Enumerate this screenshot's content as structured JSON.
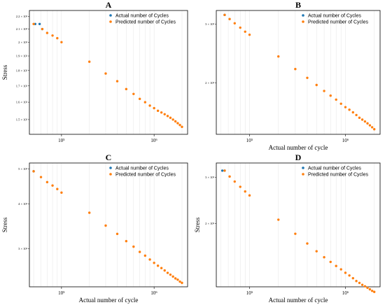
{
  "colors": {
    "actual": "#1f77b4",
    "predicted": "#ff7f0e",
    "frame": "#000000",
    "grid": "#dddddd"
  },
  "chart_data": [
    {
      "panel": "A",
      "type": "scatter",
      "title": "A",
      "xlabel": "",
      "ylabel": "Stress",
      "xscale": "log",
      "yscale": "log",
      "xlim": [
        45000,
        2300000
      ],
      "ylim": [
        142,
        225
      ],
      "xticks": [
        {
          "value": 100000,
          "label": "10⁵"
        },
        {
          "value": 1000000,
          "label": "10⁶"
        }
      ],
      "yticks": [
        {
          "value": 150,
          "label": "1.5 × 10²"
        },
        {
          "value": 160,
          "label": "1.6 × 10²"
        },
        {
          "value": 170,
          "label": "1.7 × 10²"
        },
        {
          "value": 180,
          "label": "1.8 × 10²"
        },
        {
          "value": 190,
          "label": "1.9 × 10²"
        },
        {
          "value": 200,
          "label": "2 × 10²"
        },
        {
          "value": 210,
          "label": "2.1 × 10²"
        },
        {
          "value": 220,
          "label": "2.2 × 10²"
        }
      ],
      "legend": "top-right",
      "series": [
        {
          "name": "Actual number of Cycles",
          "color": "#1f77b4",
          "x": [
            52000,
            58000,
            62000
          ],
          "y": [
            214,
            214,
            210
          ]
        },
        {
          "name": "Predicted number of Cycles",
          "color": "#ff7f0e",
          "x": [
            50000,
            62000,
            70000,
            80000,
            90000,
            100000,
            200000,
            300000,
            400000,
            500000,
            600000,
            700000,
            800000,
            900000,
            1000000,
            1100000,
            1200000,
            1300000,
            1400000,
            1500000,
            1600000,
            1700000,
            1800000,
            1900000,
            2000000
          ],
          "y": [
            214,
            210,
            207,
            205,
            203,
            200,
            186,
            178,
            173,
            168,
            165,
            162,
            160,
            158,
            156.5,
            155,
            154,
            153,
            152,
            151,
            150,
            149,
            148,
            147,
            146
          ]
        }
      ]
    },
    {
      "panel": "B",
      "type": "scatter",
      "title": "B",
      "xlabel": "Actual number of cycle",
      "ylabel": "",
      "xscale": "log",
      "yscale": "log",
      "xlim": [
        45000,
        2300000
      ],
      "ylim": [
        140,
        330
      ],
      "xticks": [
        {
          "value": 100000,
          "label": "10⁵"
        },
        {
          "value": 1000000,
          "label": "10⁶"
        }
      ],
      "yticks": [
        {
          "value": 200,
          "label": "2 × 10²"
        },
        {
          "value": 300,
          "label": "3 × 10²"
        }
      ],
      "legend": "top-right",
      "series": [
        {
          "name": "Actual number of Cycles",
          "color": "#1f77b4",
          "x": [
            55000
          ],
          "y": [
            320
          ]
        },
        {
          "name": "Predicted number of Cycles",
          "color": "#ff7f0e",
          "x": [
            55000,
            62000,
            70000,
            80000,
            90000,
            100000,
            200000,
            300000,
            400000,
            500000,
            600000,
            700000,
            800000,
            900000,
            1000000,
            1100000,
            1200000,
            1300000,
            1400000,
            1500000,
            1600000,
            1700000,
            1800000,
            1900000,
            2000000
          ],
          "y": [
            320,
            311,
            302,
            293,
            285,
            279,
            240,
            220,
            207,
            197,
            189,
            183,
            178,
            173,
            169,
            166,
            163,
            160,
            157,
            155,
            153,
            151,
            149,
            147,
            145
          ]
        }
      ]
    },
    {
      "panel": "C",
      "type": "scatter",
      "title": "C",
      "xlabel": "Actual number of cycle",
      "ylabel": "Stress",
      "xscale": "log",
      "yscale": "log",
      "xlim": [
        45000,
        2300000
      ],
      "ylim": [
        235,
        520
      ],
      "xticks": [
        {
          "value": 100000,
          "label": "10⁵"
        },
        {
          "value": 1000000,
          "label": "10⁶"
        }
      ],
      "yticks": [
        {
          "value": 300,
          "label": "3 × 10²"
        },
        {
          "value": 400,
          "label": "4 × 10²"
        },
        {
          "value": 500,
          "label": "5 × 10²"
        }
      ],
      "legend": "top-right",
      "series": [
        {
          "name": "Actual number of Cycles",
          "color": "#1f77b4",
          "x": [
            50000
          ],
          "y": [
            493
          ]
        },
        {
          "name": "Predicted number of Cycles",
          "color": "#ff7f0e",
          "x": [
            50000,
            60000,
            70000,
            80000,
            90000,
            100000,
            200000,
            300000,
            400000,
            500000,
            600000,
            700000,
            800000,
            900000,
            1000000,
            1100000,
            1200000,
            1300000,
            1400000,
            1500000,
            1600000,
            1700000,
            1800000,
            1900000,
            2000000
          ],
          "y": [
            493,
            475,
            460,
            450,
            440,
            430,
            378,
            348,
            330,
            315,
            304,
            294,
            287,
            280,
            274,
            269,
            265,
            261,
            257,
            254,
            251,
            248,
            246,
            243,
            241
          ]
        }
      ]
    },
    {
      "panel": "D",
      "type": "scatter",
      "title": "D",
      "xlabel": "Actual number of cycle",
      "ylabel": "Stress",
      "xscale": "log",
      "yscale": "log",
      "xlim": [
        45000,
        2300000
      ],
      "ylim": [
        115,
        340
      ],
      "xticks": [
        {
          "value": 100000,
          "label": "10⁵"
        },
        {
          "value": 1000000,
          "label": "10⁶"
        }
      ],
      "yticks": [
        {
          "value": 200,
          "label": "2 × 10²"
        },
        {
          "value": 300,
          "label": "3 × 10²"
        }
      ],
      "legend": "top-right",
      "series": [
        {
          "name": "Actual number of Cycles",
          "color": "#1f77b4",
          "x": [
            52000,
            55000
          ],
          "y": [
            318,
            318
          ]
        },
        {
          "name": "Predicted number of Cycles",
          "color": "#ff7f0e",
          "x": [
            55000,
            62000,
            70000,
            80000,
            90000,
            100000,
            200000,
            300000,
            400000,
            500000,
            600000,
            700000,
            800000,
            900000,
            1000000,
            1100000,
            1200000,
            1300000,
            1400000,
            1500000,
            1600000,
            1700000,
            1800000,
            1900000,
            2000000
          ],
          "y": [
            318,
            302,
            289,
            276,
            265,
            256,
            207,
            183,
            168,
            157,
            149,
            143,
            138,
            134,
            130,
            127,
            124,
            121,
            119,
            117,
            115.5,
            114,
            112.5,
            111,
            110
          ]
        }
      ]
    }
  ]
}
